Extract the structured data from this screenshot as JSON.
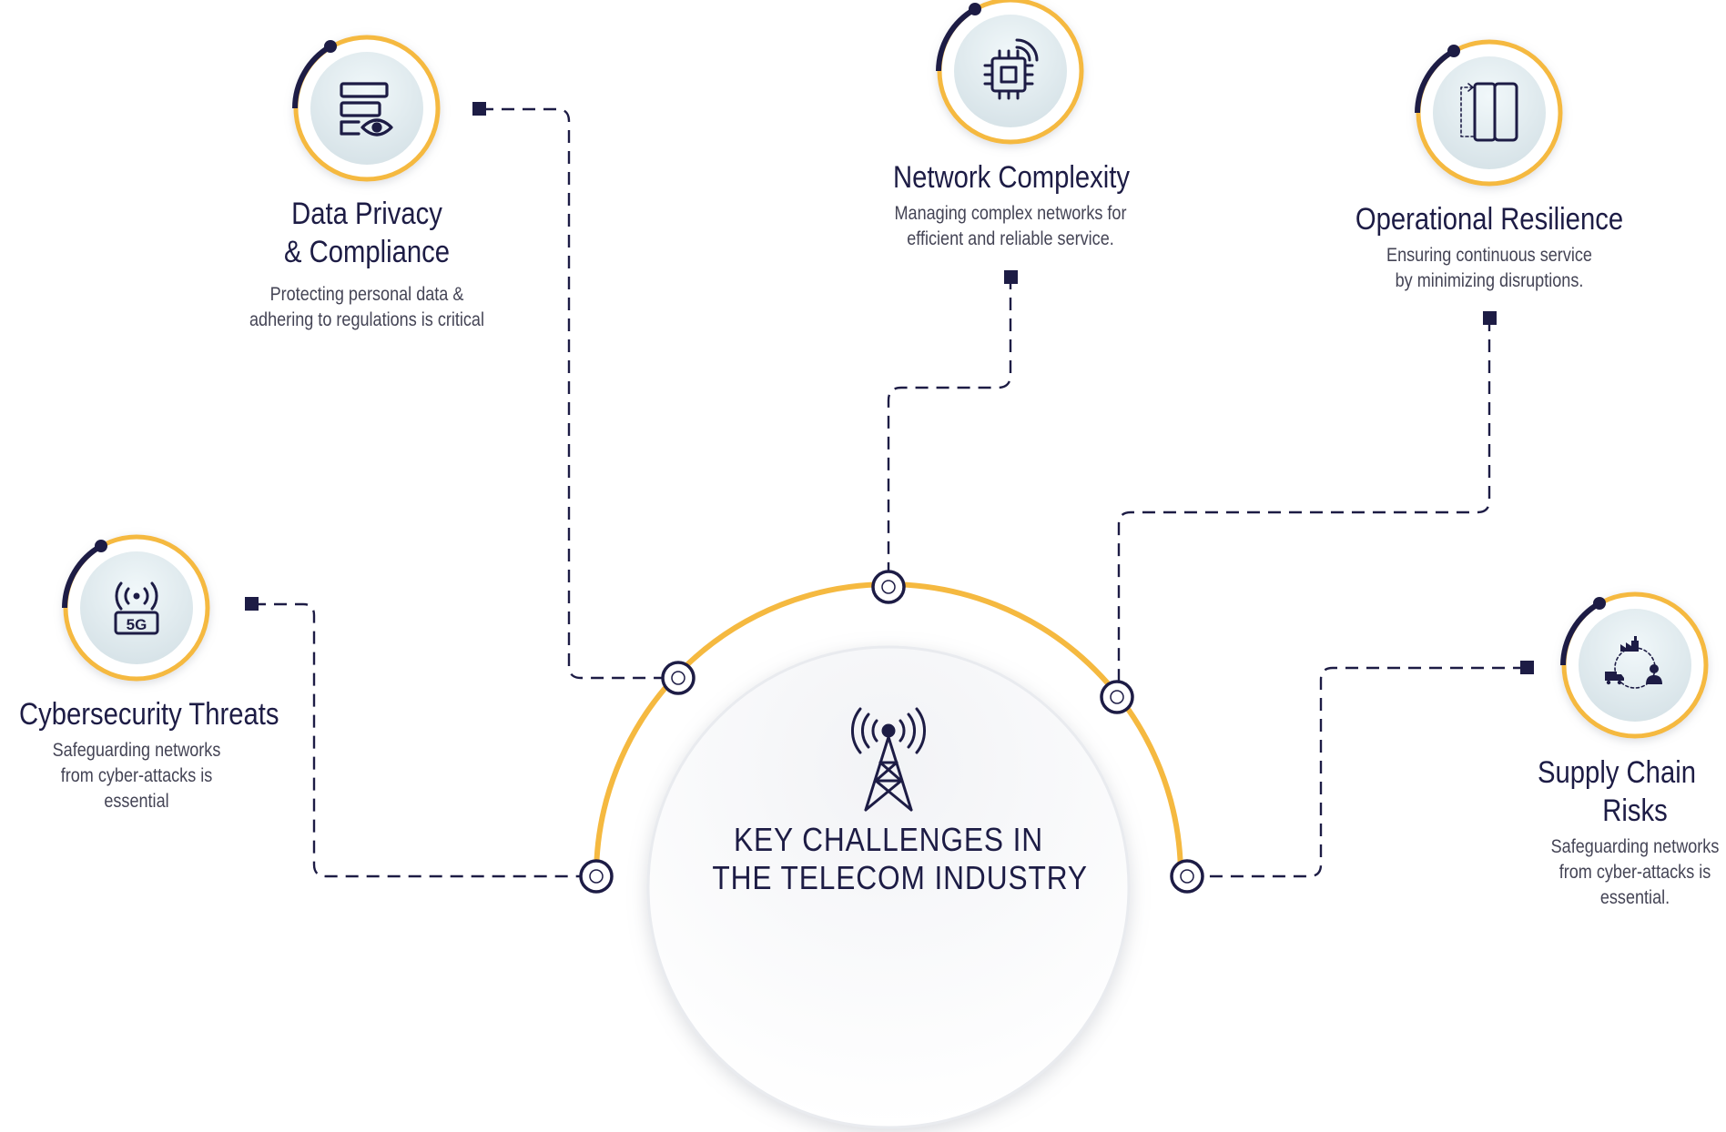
{
  "center": {
    "line1": "KEY CHALLENGES IN",
    "line2": "THE TELECOM INDUSTRY",
    "icon": "antenna-tower-icon"
  },
  "colors": {
    "navy": "#1d1c45",
    "accent": "#f5b940",
    "text": "#444455"
  },
  "challenges": [
    {
      "id": "cyber",
      "title": [
        "Cybersecurity Threats"
      ],
      "description": [
        "Safeguarding networks",
        "from cyber-attacks is",
        "essential"
      ],
      "icon": "5g-signal-icon"
    },
    {
      "id": "privacy",
      "title": [
        "Data Privacy",
        "& Compliance"
      ],
      "description": [
        "Protecting personal data &",
        "adhering to regulations is critical"
      ],
      "icon": "data-privacy-eye-icon"
    },
    {
      "id": "network",
      "title": [
        "Network Complexity"
      ],
      "description": [
        "Managing complex networks for",
        "efficient and reliable service."
      ],
      "icon": "processor-chip-icon"
    },
    {
      "id": "resilience",
      "title": [
        "Operational Resilience"
      ],
      "description": [
        "Ensuring continuous service",
        "by minimizing disruptions."
      ],
      "icon": "layered-devices-icon"
    },
    {
      "id": "supply",
      "title": [
        "Supply Chain",
        "Risks"
      ],
      "description": [
        "Safeguarding networks",
        "from cyber-attacks is",
        "essential."
      ],
      "icon": "supply-chain-cycle-icon"
    }
  ]
}
